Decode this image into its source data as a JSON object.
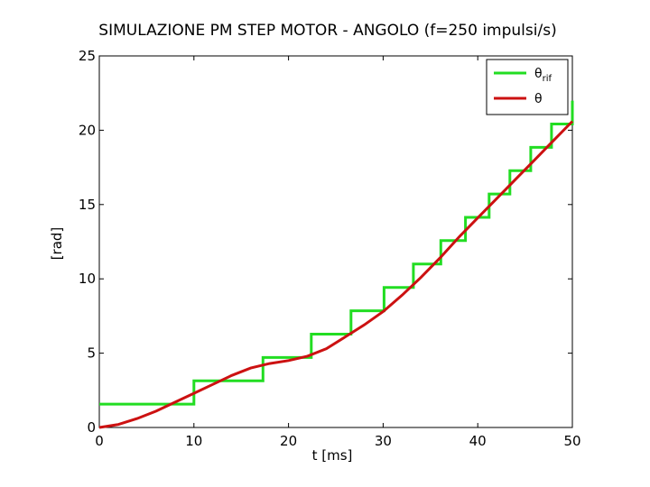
{
  "chart_data": {
    "type": "line",
    "title": "SIMULAZIONE PM STEP MOTOR - ANGOLO (f=250 impulsi/s)",
    "xlabel": "t [ms]",
    "ylabel": "[rad]",
    "xlim": [
      0,
      50
    ],
    "ylim": [
      0,
      25
    ],
    "xticks": [
      0,
      10,
      20,
      30,
      40,
      50
    ],
    "yticks": [
      0,
      5,
      10,
      15,
      20,
      25
    ],
    "grid": false,
    "legend_position": "top-right",
    "series": [
      {
        "name": "θ_rif",
        "legend_main": "θ",
        "legend_sub": "rif",
        "color": "#22dd22",
        "style": "step",
        "x": [
          0,
          10,
          10,
          17.3,
          17.3,
          22.4,
          22.4,
          26.6,
          26.6,
          30.1,
          30.1,
          33.2,
          33.2,
          36.1,
          36.1,
          38.7,
          38.7,
          41.2,
          41.2,
          43.4,
          43.4,
          45.6,
          45.6,
          47.8,
          47.8,
          50,
          50
        ],
        "y": [
          1.57,
          1.57,
          3.14,
          3.14,
          4.71,
          4.71,
          6.28,
          6.28,
          7.85,
          7.85,
          9.42,
          9.42,
          11.0,
          11.0,
          12.57,
          12.57,
          14.14,
          14.14,
          15.71,
          15.71,
          17.28,
          17.28,
          18.85,
          18.85,
          20.42,
          20.42,
          21.99
        ]
      },
      {
        "name": "θ",
        "legend_main": "θ",
        "legend_sub": "",
        "color": "#cc1111",
        "style": "line",
        "x": [
          0,
          2,
          4,
          6,
          8,
          10,
          12,
          14,
          16,
          18,
          20,
          22,
          24,
          26,
          28,
          30,
          32,
          34,
          36,
          38,
          40,
          42,
          44,
          46,
          48,
          50
        ],
        "y": [
          0.0,
          0.2,
          0.6,
          1.1,
          1.7,
          2.3,
          2.9,
          3.5,
          4.0,
          4.3,
          4.5,
          4.8,
          5.3,
          6.1,
          6.9,
          7.8,
          8.9,
          10.1,
          11.4,
          12.8,
          14.1,
          15.4,
          16.7,
          18.0,
          19.3,
          20.6
        ]
      }
    ]
  }
}
